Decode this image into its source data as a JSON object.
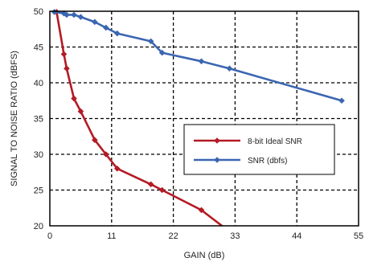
{
  "chart_data": {
    "type": "line",
    "title": "",
    "xlabel": "GAIN (dB)",
    "ylabel": "SIGNAL TO NOISE RATIO (dBFS)",
    "xlim": [
      0,
      55
    ],
    "ylim": [
      20,
      50
    ],
    "xticks": [
      0,
      11,
      22,
      33,
      44,
      55
    ],
    "yticks": [
      20,
      25,
      30,
      35,
      40,
      45,
      50
    ],
    "grid": true,
    "legend_position": "center-right",
    "series": [
      {
        "name": "8-bit Ideal SNR",
        "color": "#b31b25",
        "marker": "diamond",
        "x": [
          1.2,
          2.5,
          3.0,
          4.3,
          5.5,
          8.0,
          10.0,
          12.0,
          18.0,
          20.0,
          27.0,
          31.0
        ],
        "y": [
          49.9,
          44.0,
          42.0,
          37.8,
          36.0,
          32.0,
          30.0,
          28.0,
          25.8,
          25.0,
          22.2,
          19.8
        ]
      },
      {
        "name": "SNR (dbfs)",
        "color": "#3b66b1",
        "marker": "diamond",
        "x": [
          0.8,
          2.5,
          3.0,
          4.3,
          5.5,
          8.0,
          10.0,
          12.0,
          18.0,
          20.0,
          27.0,
          32.0,
          52.0
        ],
        "y": [
          49.9,
          49.7,
          49.5,
          49.5,
          49.2,
          48.5,
          47.7,
          46.9,
          45.8,
          44.2,
          43.0,
          42.0,
          37.5
        ]
      }
    ]
  }
}
